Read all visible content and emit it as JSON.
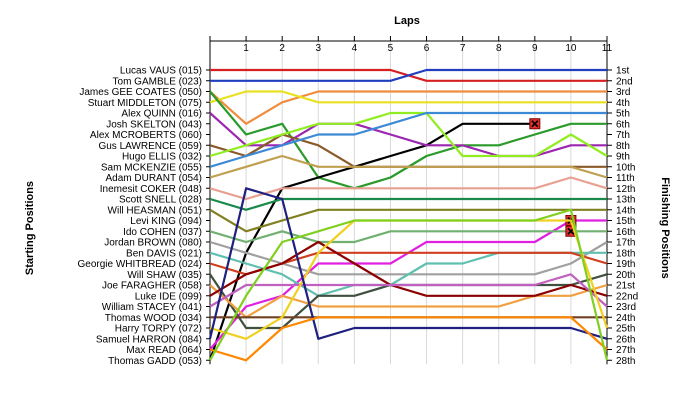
{
  "chart_data": {
    "type": "line",
    "title": "",
    "xlabel": "Laps",
    "ylabel_left": "Starting Positions",
    "ylabel_right": "Finishing Positions",
    "laps": [
      1,
      2,
      3,
      4,
      5,
      6,
      7,
      8,
      9,
      10,
      11
    ],
    "finish_labels": [
      "1st",
      "2nd",
      "3rd",
      "4th",
      "5th",
      "6th",
      "7th",
      "8th",
      "9th",
      "10th",
      "11th",
      "12th",
      "13th",
      "14th",
      "15th",
      "16th",
      "17th",
      "18th",
      "19th",
      "20th",
      "21st",
      "22nd",
      "23rd",
      "24th",
      "25th",
      "26th",
      "27th",
      "28th"
    ],
    "series": [
      {
        "name": "Lucas VAUS (015)",
        "color": "#d62020",
        "positions": [
          1,
          1,
          1,
          1,
          1,
          1,
          2,
          2,
          2,
          2,
          2,
          2
        ]
      },
      {
        "name": "Tom GAMBLE (023)",
        "color": "#1f3fbf",
        "positions": [
          2,
          2,
          2,
          2,
          2,
          2,
          1,
          1,
          1,
          1,
          1,
          1
        ]
      },
      {
        "name": "James GEE COATES (050)",
        "color": "#f08c3c",
        "positions": [
          3,
          6,
          4,
          3,
          3,
          3,
          3,
          3,
          3,
          3,
          3,
          3
        ]
      },
      {
        "name": "Stuart MIDDLETON (075)",
        "color": "#e8e020",
        "positions": [
          4,
          3,
          3,
          4,
          4,
          4,
          4,
          4,
          4,
          4,
          4,
          4
        ]
      },
      {
        "name": "Alex QUINN (016)",
        "color": "#2a9a2a",
        "positions": [
          3,
          7,
          6,
          11,
          12,
          11,
          9,
          8,
          8,
          7,
          6,
          6
        ],
        "retired_lap": null
      },
      {
        "name": "Josh SKELTON (043)",
        "color": "#000000",
        "positions": [
          29,
          18,
          12,
          11,
          10,
          9,
          8,
          6,
          6,
          6,
          null,
          null
        ],
        "retired_lap": 9
      },
      {
        "name": "Alex MCROBERTS (060)",
        "color": "#9c27b0",
        "positions": [
          5,
          8,
          8,
          6,
          6,
          7,
          8,
          8,
          9,
          9,
          8,
          8
        ]
      },
      {
        "name": "Gus LAWRENCE (059)",
        "color": "#8b5a2b",
        "positions": [
          8,
          9,
          7,
          8,
          10,
          10,
          10,
          10,
          10,
          10,
          10,
          10
        ]
      },
      {
        "name": "Hugo ELLIS (032)",
        "color": "#90ee20",
        "positions": [
          9,
          8,
          7,
          6,
          6,
          5,
          5,
          9,
          9,
          9,
          7,
          9
        ]
      },
      {
        "name": "Sam MCKENZIE (055)",
        "color": "#3c8ad6",
        "positions": [
          10,
          9,
          8,
          7,
          7,
          6,
          5,
          5,
          5,
          5,
          5,
          5
        ]
      },
      {
        "name": "Adam DURANT (054)",
        "color": "#c0a050",
        "positions": [
          11,
          10,
          9,
          10,
          10,
          10,
          10,
          10,
          10,
          10,
          10,
          11
        ]
      },
      {
        "name": "Inemesit COKER (048)",
        "color": "#e8a090",
        "positions": [
          12,
          13,
          12,
          12,
          12,
          12,
          12,
          12,
          12,
          12,
          11,
          12
        ]
      },
      {
        "name": "Scott SNELL (028)",
        "color": "#1a8a4a",
        "positions": [
          13,
          14,
          13,
          13,
          13,
          13,
          13,
          13,
          13,
          13,
          13,
          13
        ]
      },
      {
        "name": "Will HEASMAN (051)",
        "color": "#808020",
        "positions": [
          14,
          16,
          15,
          14,
          14,
          14,
          14,
          14,
          14,
          14,
          14,
          14
        ]
      },
      {
        "name": "Levi KING (094)",
        "color": "#e020e0",
        "positions": [
          27,
          23,
          22,
          19,
          19,
          19,
          17,
          17,
          17,
          17,
          15,
          15
        ],
        "retired_lap": 10
      },
      {
        "name": "Ido COHEN (037)",
        "color": "#70b070",
        "positions": [
          16,
          17,
          16,
          17,
          17,
          16,
          16,
          16,
          16,
          16,
          16,
          16
        ],
        "retired_lap": 10
      },
      {
        "name": "Jordan BROWN (080)",
        "color": "#a0a0a0",
        "positions": [
          17,
          18,
          19,
          20,
          20,
          20,
          20,
          20,
          20,
          20,
          19,
          17
        ]
      },
      {
        "name": "Ben DAVIS (021)",
        "color": "#60c0b0",
        "positions": [
          18,
          19,
          20,
          22,
          21,
          21,
          19,
          19,
          18,
          18,
          18,
          18
        ]
      },
      {
        "name": "Georgie WHITBREAD (024)",
        "color": "#d04020",
        "positions": [
          19,
          20,
          19,
          18,
          18,
          18,
          18,
          18,
          18,
          18,
          18,
          19
        ]
      },
      {
        "name": "Will SHAW (035)",
        "color": "#405040",
        "positions": [
          20,
          25,
          25,
          22,
          22,
          21,
          21,
          21,
          21,
          21,
          21,
          20
        ]
      },
      {
        "name": "Joe FARAGHER (058)",
        "color": "#f0a040",
        "positions": [
          21,
          24,
          22,
          23,
          23,
          23,
          23,
          23,
          23,
          22,
          22,
          21
        ]
      },
      {
        "name": "Luke IDE (099)",
        "color": "#8b0000",
        "positions": [
          22,
          20,
          19,
          17,
          19,
          21,
          22,
          22,
          22,
          22,
          21,
          22
        ]
      },
      {
        "name": "William STACEY (041)",
        "color": "#c060c0",
        "positions": [
          23,
          21,
          21,
          21,
          21,
          21,
          21,
          21,
          21,
          21,
          20,
          23
        ]
      },
      {
        "name": "Thomas WOOD (034)",
        "color": "#704020",
        "positions": [
          24,
          24,
          24,
          24,
          24,
          24,
          24,
          24,
          24,
          24,
          24,
          24
        ]
      },
      {
        "name": "Harry TORPY (072)",
        "color": "#f0d020",
        "positions": [
          25,
          26,
          24,
          18,
          15,
          15,
          15,
          15,
          15,
          15,
          15,
          25
        ]
      },
      {
        "name": "Samuel HARRON (084)",
        "color": "#202080",
        "positions": [
          26,
          12,
          13,
          26,
          25,
          25,
          25,
          25,
          25,
          25,
          25,
          26
        ]
      },
      {
        "name": "Max READ (064)",
        "color": "#ff8800",
        "positions": [
          27,
          28,
          25,
          24,
          24,
          24,
          24,
          24,
          24,
          24,
          24,
          27
        ]
      },
      {
        "name": "Thomas GADD (053)",
        "color": "#80d020",
        "positions": [
          28,
          22,
          17,
          16,
          15,
          15,
          15,
          15,
          15,
          15,
          14,
          28
        ]
      }
    ],
    "grid": true
  }
}
